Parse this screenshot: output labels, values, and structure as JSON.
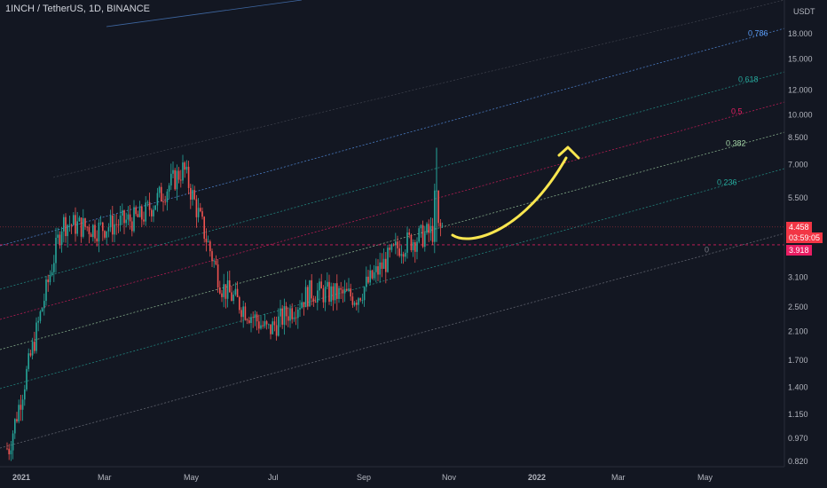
{
  "header": {
    "symbol_title": "1INCH / TetherUS, 1D, BINANCE"
  },
  "price_axis": {
    "unit": "USDT"
  },
  "chart_data": {
    "type": "candlestick",
    "title": "1INCH / TetherUS, 1D, BINANCE",
    "y_scale": "log",
    "y_ticks": [
      "18.000",
      "15.000",
      "12.000",
      "10.000",
      "8.500",
      "7.000",
      "5.500",
      "4.458",
      "3.918",
      "3.100",
      "2.500",
      "2.100",
      "1.700",
      "1.400",
      "1.150",
      "0.970",
      "0.820"
    ],
    "x_ticks": [
      "2021",
      "Mar",
      "May",
      "Jul",
      "Sep",
      "Nov",
      "2022",
      "Mar",
      "May"
    ],
    "fib_channel_levels": [
      {
        "level": "0",
        "color": "#787b86"
      },
      {
        "level": "0.236",
        "color": "#26a69a"
      },
      {
        "level": "0.382",
        "color": "#a5d6a7"
      },
      {
        "level": "0.5",
        "color": "#e91e63"
      },
      {
        "level": "0.618",
        "color": "#26a69a"
      },
      {
        "level": "0.786",
        "color": "#5b9cf6"
      }
    ],
    "last_price": {
      "value": "4.458",
      "countdown": "03:59:05",
      "color": "#f23645"
    },
    "marked_price": {
      "value": "3.918",
      "color": "#e91e63"
    },
    "approx_closes": [
      {
        "date": "2021-01",
        "close": 0.9
      },
      {
        "date": "2021-02",
        "close": 4.6
      },
      {
        "date": "2021-03",
        "close": 4.4
      },
      {
        "date": "2021-04",
        "close": 4.8
      },
      {
        "date": "2021-05",
        "close": 6.8
      },
      {
        "date": "2021-06",
        "close": 2.9
      },
      {
        "date": "2021-07",
        "close": 2.1
      },
      {
        "date": "2021-08",
        "close": 2.8
      },
      {
        "date": "2021-09",
        "close": 2.7
      },
      {
        "date": "2021-10",
        "close": 3.9
      },
      {
        "date": "2021-11",
        "close": 4.458
      }
    ],
    "annotation": "yellow upward-curving arrow",
    "colors": {
      "up": "#26a69a",
      "down": "#ef5350",
      "arrow": "#f9e64f",
      "background": "#131722"
    }
  }
}
